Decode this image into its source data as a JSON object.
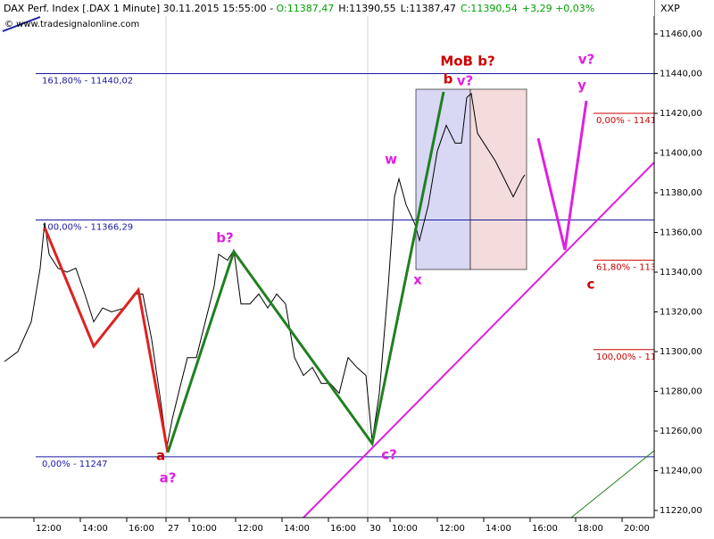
{
  "chart_data": {
    "type": "line",
    "title": "DAX Perf. Index [.DAX  1 Minute] 30.11.2015 15:55:00 - ",
    "ohlc_text": [
      {
        "text": "O:11387,47",
        "color": "#00a000"
      },
      {
        "text": "H:11390,55",
        "color": "#000000"
      },
      {
        "text": "L:11387,47",
        "color": "#000000"
      },
      {
        "text": "C:11390,54",
        "color": "#00a000"
      },
      {
        "text": "+3,29 +0,03%",
        "color": "#00a000"
      }
    ],
    "copyright": "© www.tradesignalonline.com",
    "corner_label": "XXP",
    "xlim": [
      0,
      733
    ],
    "ylim": [
      11216.4,
      11469
    ],
    "xticks": [
      {
        "value": 38,
        "label": "12:00"
      },
      {
        "value": 90,
        "label": "14:00"
      },
      {
        "value": 142,
        "label": "16:00"
      },
      {
        "value": 186,
        "label": "27"
      },
      {
        "value": 212,
        "label": "10:00"
      },
      {
        "value": 264,
        "label": "12:00"
      },
      {
        "value": 316,
        "label": "14:00"
      },
      {
        "value": 368,
        "label": "16:00"
      },
      {
        "value": 412,
        "label": "30"
      },
      {
        "value": 437,
        "label": "10:00"
      },
      {
        "value": 490,
        "label": "12:00"
      },
      {
        "value": 542,
        "label": "14:00"
      },
      {
        "value": 594,
        "label": "16:00"
      },
      {
        "value": 645,
        "label": "18:00"
      },
      {
        "value": 697,
        "label": "20:00"
      }
    ],
    "yticks": [
      {
        "value": 11220,
        "label": "11220,00"
      },
      {
        "value": 11240,
        "label": "11240,00"
      },
      {
        "value": 11260,
        "label": "11260,00"
      },
      {
        "value": 11280,
        "label": "11280,00"
      },
      {
        "value": 11300,
        "label": "11300,00"
      },
      {
        "value": 11320,
        "label": "11320,00"
      },
      {
        "value": 11340,
        "label": "11340,00"
      },
      {
        "value": 11360,
        "label": "11360,00"
      },
      {
        "value": 11380,
        "label": "11380,00"
      },
      {
        "value": 11400,
        "label": "11400,00"
      },
      {
        "value": 11420,
        "label": "11420,00"
      },
      {
        "value": 11440,
        "label": "11440,00"
      },
      {
        "value": 11460,
        "label": "11460,00"
      }
    ],
    "series": [
      {
        "name": "DAX",
        "color": "#000000",
        "x": [
          5,
          20,
          35,
          45,
          50,
          55,
          65,
          75,
          85,
          95,
          105,
          115,
          125,
          140,
          150,
          160,
          170,
          180,
          187,
          193,
          200,
          210,
          220,
          230,
          240,
          245,
          255,
          262,
          270,
          280,
          290,
          300,
          310,
          320,
          330,
          340,
          350,
          360,
          370,
          380,
          390,
          400,
          410,
          417,
          425,
          435,
          442,
          447,
          455,
          465,
          470,
          480,
          490,
          500,
          510,
          517,
          523,
          528,
          535,
          545,
          555,
          565,
          575,
          585,
          588
        ],
        "values": [
          11295,
          11300,
          11315,
          11342,
          11365,
          11349,
          11342,
          11340,
          11342,
          11329,
          11315,
          11322,
          11320,
          11322,
          11329,
          11329,
          11306,
          11275,
          11252,
          11266,
          11279,
          11297,
          11297,
          11315,
          11333,
          11349,
          11346,
          11351,
          11324,
          11324,
          11329,
          11322,
          11329,
          11324,
          11297,
          11288,
          11292,
          11284,
          11284,
          11279,
          11297,
          11292,
          11288,
          11255,
          11279,
          11333,
          11378,
          11387,
          11374,
          11364,
          11356,
          11374,
          11401,
          11414,
          11405,
          11405,
          11428,
          11430,
          11410,
          11403,
          11396,
          11387,
          11378,
          11387,
          11389
        ]
      }
    ],
    "fib_levels": [
      {
        "value": 11440.02,
        "label": "161,80% - 11440,02",
        "color": "#1a1aa0"
      },
      {
        "value": 11366.29,
        "label": "100,00% - 11366,29",
        "color": "#1a1aa0"
      },
      {
        "value": 11247,
        "label": "0,00% - 11247",
        "color": "#1a1aa0"
      },
      {
        "value": 11420,
        "label": "0,00% - 1141",
        "color": "#cc0000"
      },
      {
        "value": 11346,
        "label": "61,80% - 113",
        "color": "#cc0000"
      },
      {
        "value": 11301,
        "label": "100,00% - 11",
        "color": "#cc0000"
      }
    ],
    "wave_labels": [
      {
        "text": "a",
        "color": "#cc0000"
      },
      {
        "text": "a?",
        "color": "#e020e0"
      },
      {
        "text": "b?",
        "color": "#e020e0"
      },
      {
        "text": "c?",
        "color": "#e020e0"
      },
      {
        "text": "w",
        "color": "#e020e0"
      },
      {
        "text": "x",
        "color": "#e020e0"
      },
      {
        "text": "b",
        "color": "#cc0000"
      },
      {
        "text": "v?",
        "color": "#e020e0"
      },
      {
        "text": "MoB b?",
        "color": "#cc0000"
      },
      {
        "text": "v?",
        "color": "#e020e0"
      },
      {
        "text": "y",
        "color": "#e020e0"
      },
      {
        "text": "c",
        "color": "#cc0000"
      }
    ]
  }
}
